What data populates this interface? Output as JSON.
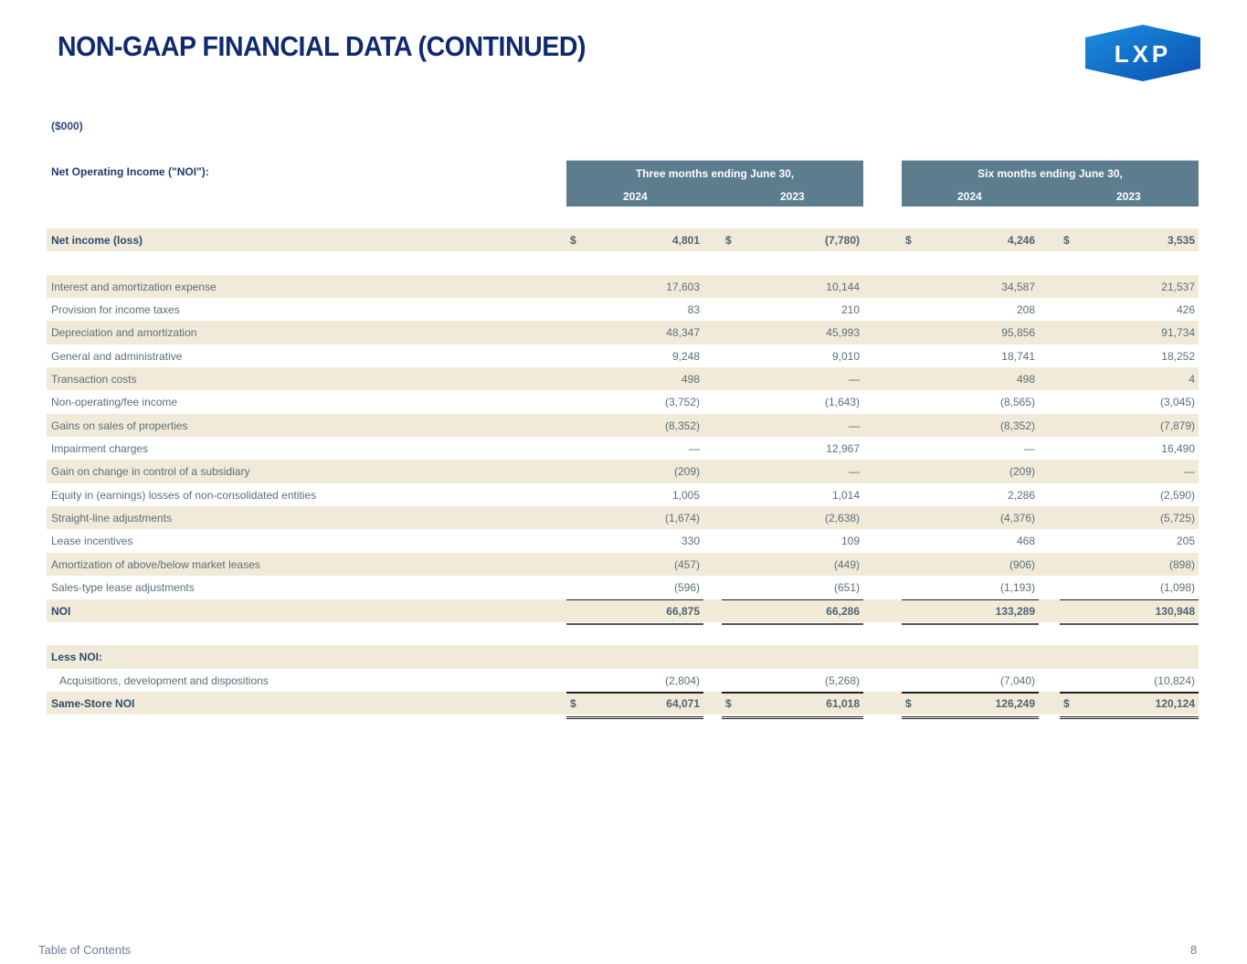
{
  "title": "NON-GAAP FINANCIAL DATA (CONTINUED)",
  "logo_text": "LXP",
  "units": "($000)",
  "section_label": "Net Operating Income (\"NOI\"):",
  "periods": [
    {
      "label": "Three months ending June 30,",
      "years": [
        "2024",
        "2023"
      ]
    },
    {
      "label": "Six months ending June 30,",
      "years": [
        "2024",
        "2023"
      ]
    }
  ],
  "rows": [
    {
      "label": "Net income (loss)",
      "values": [
        "4,801",
        "(7,780)",
        "4,246",
        "3,535"
      ],
      "dollar": true,
      "bold": true,
      "shaded": true
    },
    {
      "label": "",
      "values": [
        "",
        "",
        "",
        ""
      ],
      "shaded": false
    },
    {
      "label": "Interest and amortization expense",
      "values": [
        "17,603",
        "10,144",
        "34,587",
        "21,537"
      ],
      "shaded": true
    },
    {
      "label": "Provision for income taxes",
      "values": [
        "83",
        "210",
        "208",
        "426"
      ],
      "shaded": false
    },
    {
      "label": "Depreciation and amortization",
      "values": [
        "48,347",
        "45,993",
        "95,856",
        "91,734"
      ],
      "shaded": true
    },
    {
      "label": "General and administrative",
      "values": [
        "9,248",
        "9,010",
        "18,741",
        "18,252"
      ],
      "shaded": false
    },
    {
      "label": "Transaction costs",
      "values": [
        "498",
        "—",
        "498",
        "4"
      ],
      "shaded": true
    },
    {
      "label": "Non-operating/fee income",
      "values": [
        "(3,752)",
        "(1,643)",
        "(8,565)",
        "(3,045)"
      ],
      "shaded": false
    },
    {
      "label": "Gains on sales of properties",
      "values": [
        "(8,352)",
        "—",
        "(8,352)",
        "(7,879)"
      ],
      "shaded": true
    },
    {
      "label": "Impairment charges",
      "values": [
        "—",
        "12,967",
        "—",
        "16,490"
      ],
      "shaded": false
    },
    {
      "label": "Gain on change in control of a subsidiary",
      "values": [
        "(209)",
        "—",
        "(209)",
        "—"
      ],
      "shaded": true
    },
    {
      "label": "Equity in (earnings) losses of non-consolidated entities",
      "values": [
        "1,005",
        "1,014",
        "2,286",
        "(2,590)"
      ],
      "shaded": false
    },
    {
      "label": "Straight-line adjustments",
      "values": [
        "(1,674)",
        "(2,638)",
        "(4,376)",
        "(5,725)"
      ],
      "shaded": true
    },
    {
      "label": "Lease incentives",
      "values": [
        "330",
        "109",
        "468",
        "205"
      ],
      "shaded": false
    },
    {
      "label": "Amortization of above/below market leases",
      "values": [
        "(457)",
        "(449)",
        "(906)",
        "(898)"
      ],
      "shaded": true
    },
    {
      "label": "Sales-type lease adjustments",
      "values": [
        "(596)",
        "(651)",
        "(1,193)",
        "(1,098)"
      ],
      "shaded": false
    },
    {
      "label": "NOI",
      "values": [
        "66,875",
        "66,286",
        "133,289",
        "130,948"
      ],
      "bold": true,
      "shaded": true,
      "total": "single"
    },
    {
      "label": "",
      "values": [
        "",
        "",
        "",
        ""
      ],
      "shaded": false
    },
    {
      "label": "Less NOI:",
      "values": [
        "",
        "",
        "",
        ""
      ],
      "bold": true,
      "shaded": true
    },
    {
      "label": "Acquisitions, development and dispositions",
      "values": [
        "(2,804)",
        "(5,268)",
        "(7,040)",
        "(10,824)"
      ],
      "shaded": false,
      "indent": true
    },
    {
      "label": "Same-Store NOI",
      "values": [
        "64,071",
        "61,018",
        "126,249",
        "120,124"
      ],
      "dollar": true,
      "bold": true,
      "shaded": true,
      "total": "double"
    }
  ],
  "currency_symbol": "$",
  "footer": {
    "toc": "Table of Contents",
    "page": "8"
  }
}
